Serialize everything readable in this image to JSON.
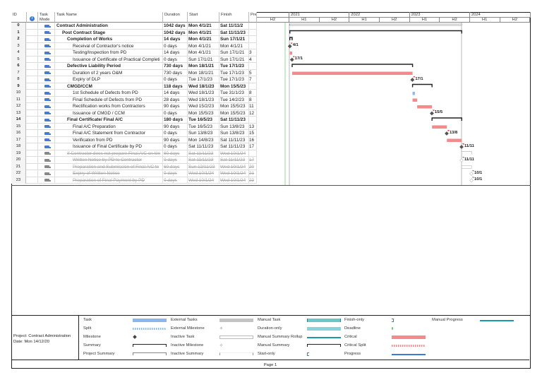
{
  "columns": {
    "id": "ID",
    "info": "i",
    "mode": "Task Mode",
    "name": "Task Name",
    "duration": "Duration",
    "start": "Start",
    "finish": "Finish",
    "pred": "Predecessors"
  },
  "timeline": {
    "years": [
      "2021",
      "2022",
      "2023",
      "2024"
    ],
    "halves": [
      "H2",
      "H1",
      "H2",
      "H1",
      "H2",
      "H1",
      "H2",
      "H1",
      "H2"
    ]
  },
  "colors": {
    "critical": "#f48a8c",
    "task": "#8ab8ec",
    "summary": "#222222",
    "milestone": "#555555",
    "inactive": "#bbbbbb",
    "status_line": "#7ccf7c"
  },
  "tasks": [
    {
      "id": "0",
      "name": "Contract Administration",
      "duration": "1042 days",
      "start": "Mon 4/1/21",
      "finish": "Sat 11/11/2",
      "pred": "",
      "level": 0,
      "kind": "project",
      "s": "2021-01-04",
      "f": "2023-11-11"
    },
    {
      "id": "1",
      "name": "Post Contract Stage",
      "duration": "1042 days",
      "start": "Mon 4/1/21",
      "finish": "Sat 11/11/23",
      "pred": "",
      "level": 1,
      "kind": "summary",
      "s": "2021-01-04",
      "f": "2023-11-11"
    },
    {
      "id": "2",
      "name": "Completion of Works",
      "duration": "14 days",
      "start": "Mon 4/1/21",
      "finish": "Sun 17/1/21",
      "pred": "",
      "level": 2,
      "kind": "summary",
      "s": "2021-01-04",
      "f": "2021-01-17"
    },
    {
      "id": "3",
      "name": "Receival of Contractor's notice",
      "duration": "0 days",
      "start": "Mon 4/1/21",
      "finish": "Mon 4/1/21",
      "pred": "",
      "level": 3,
      "kind": "milestone",
      "s": "2021-01-04",
      "f": "2021-01-04",
      "label": "4/1"
    },
    {
      "id": "4",
      "name": "Testing/Inspection from PD",
      "duration": "14 days",
      "start": "Mon 4/1/21",
      "finish": "Sun 17/1/21",
      "pred": "3",
      "level": 3,
      "kind": "critical",
      "s": "2021-01-04",
      "f": "2021-01-17"
    },
    {
      "id": "5",
      "name": "Issuance of Certificate of Practical Completi",
      "duration": "0 days",
      "start": "Sun 17/1/21",
      "finish": "Sun 17/1/21",
      "pred": "4",
      "level": 3,
      "kind": "milestone",
      "s": "2021-01-17",
      "f": "2021-01-17",
      "label": "17/1"
    },
    {
      "id": "6",
      "name": "Defective Liability Period",
      "duration": "730 days",
      "start": "Mon 18/1/21",
      "finish": "Tue 17/1/23",
      "pred": "",
      "level": 2,
      "kind": "summary",
      "s": "2021-01-18",
      "f": "2023-01-17"
    },
    {
      "id": "7",
      "name": "Duration of 2 years O&M",
      "duration": "730 days",
      "start": "Mon 18/1/21",
      "finish": "Tue 17/1/23",
      "pred": "5",
      "level": 3,
      "kind": "critical",
      "s": "2021-01-18",
      "f": "2023-01-17"
    },
    {
      "id": "8",
      "name": "Expiry of DLP",
      "duration": "0 days",
      "start": "Tue 17/1/23",
      "finish": "Tue 17/1/23",
      "pred": "7",
      "level": 3,
      "kind": "milestone",
      "s": "2023-01-17",
      "f": "2023-01-17",
      "label": "17/1"
    },
    {
      "id": "9",
      "name": "CMGD/CCM",
      "duration": "118 days",
      "start": "Wed 18/1/23",
      "finish": "Mon 15/5/23",
      "pred": "",
      "level": 2,
      "kind": "summary",
      "s": "2023-01-18",
      "f": "2023-05-15"
    },
    {
      "id": "10",
      "name": "1st Schedule of Defects from PD",
      "duration": "14 days",
      "start": "Wed 18/1/23",
      "finish": "Tue 31/1/23",
      "pred": "8",
      "level": 3,
      "kind": "task",
      "s": "2023-01-18",
      "f": "2023-01-31"
    },
    {
      "id": "11",
      "name": "Final Schedule of Defects from PD",
      "duration": "28 days",
      "start": "Wed 18/1/23",
      "finish": "Tue 14/2/23",
      "pred": "8",
      "level": 3,
      "kind": "critical",
      "s": "2023-01-18",
      "f": "2023-02-14"
    },
    {
      "id": "12",
      "name": "Rectification works from Contractors",
      "duration": "90 days",
      "start": "Wed 15/2/23",
      "finish": "Mon 15/5/23",
      "pred": "11",
      "level": 3,
      "kind": "critical",
      "s": "2023-02-15",
      "f": "2023-05-15"
    },
    {
      "id": "13",
      "name": "Issuance of CMGD / CCM",
      "duration": "0 days",
      "start": "Mon 15/5/23",
      "finish": "Mon 15/5/23",
      "pred": "12",
      "level": 3,
      "kind": "milestone",
      "s": "2023-05-15",
      "f": "2023-05-15",
      "label": "15/5"
    },
    {
      "id": "14",
      "name": "Final Certificate/ Final A/C",
      "duration": "180 days",
      "start": "Tue 16/5/23",
      "finish": "Sat 11/11/23",
      "pred": "",
      "level": 2,
      "kind": "summary",
      "s": "2023-05-16",
      "f": "2023-11-11"
    },
    {
      "id": "15",
      "name": "Final A/C Preparation",
      "duration": "90 days",
      "start": "Tue 16/5/23",
      "finish": "Sun 13/8/23",
      "pred": "13",
      "level": 3,
      "kind": "critical",
      "s": "2023-05-16",
      "f": "2023-08-13"
    },
    {
      "id": "16",
      "name": "Final A/C Statement from Contractor",
      "duration": "0 days",
      "start": "Sun 13/8/23",
      "finish": "Sun 13/8/23",
      "pred": "15",
      "level": 3,
      "kind": "milestone",
      "s": "2023-08-13",
      "f": "2023-08-13",
      "label": "13/8"
    },
    {
      "id": "17",
      "name": "Verification from PD",
      "duration": "90 days",
      "start": "Mon 14/8/23",
      "finish": "Sat 11/11/23",
      "pred": "16",
      "level": 3,
      "kind": "critical",
      "s": "2023-08-14",
      "f": "2023-11-11"
    },
    {
      "id": "18",
      "name": "Issuance of Final Certificate by PD",
      "duration": "0 days",
      "start": "Sat 11/11/23",
      "finish": "Sat 11/11/23",
      "pred": "17",
      "level": 3,
      "kind": "milestone",
      "s": "2023-11-11",
      "f": "2023-11-11",
      "label": "11/11"
    },
    {
      "id": "19",
      "name": "If Contractor does not prepare Final A/C on tim",
      "duration": "60 days",
      "start": "Sat 11/11/23",
      "finish": "Wed 10/1/24",
      "pred": "",
      "level": 2,
      "kind": "inactive-summary",
      "inactive": true,
      "s": "2023-11-11",
      "f": "2024-01-10"
    },
    {
      "id": "20",
      "name": "Written Notice by PD to Contractor",
      "duration": "0 days",
      "start": "Sat 11/11/23",
      "finish": "Sat 11/11/23",
      "pred": "17",
      "level": 3,
      "kind": "inactive-milestone",
      "inactive": true,
      "s": "2023-11-11",
      "f": "2023-11-11",
      "label": "11/11"
    },
    {
      "id": "21",
      "name": "Preparation and Submission of Final A/C to",
      "duration": "60 days",
      "start": "Sun 12/11/23",
      "finish": "Wed 10/1/24",
      "pred": "20",
      "level": 3,
      "kind": "inactive-task",
      "inactive": true,
      "s": "2023-11-12",
      "f": "2024-01-10"
    },
    {
      "id": "22",
      "name": "Expiry of Written Notice",
      "duration": "0 days",
      "start": "Wed 10/1/24",
      "finish": "Wed 10/1/24",
      "pred": "21",
      "level": 3,
      "kind": "inactive-milestone",
      "inactive": true,
      "s": "2024-01-10",
      "f": "2024-01-10",
      "label": "10/1"
    },
    {
      "id": "23",
      "name": "Preparation of Final Payment by PD",
      "duration": "0 days",
      "start": "Wed 10/1/24",
      "finish": "Wed 10/1/24",
      "pred": "22",
      "level": 3,
      "kind": "inactive-milestone",
      "inactive": true,
      "s": "2024-01-10",
      "f": "2024-01-10",
      "label": "10/1"
    }
  ],
  "legend": {
    "project": "Project: Contract Administration",
    "date": "Date: Mon 14/12/20",
    "items": [
      [
        "Task",
        "Split",
        "Milestone",
        "Summary",
        "Project Summary"
      ],
      [
        "External Tasks",
        "External Milestone",
        "Inactive Task",
        "Inactive Milestone",
        "Inactive Summary"
      ],
      [
        "Manual Task",
        "Duration-only",
        "Manual Summary Rollup",
        "Manual Summary",
        "Start-only"
      ],
      [
        "Finish-only",
        "Deadline",
        "Critical",
        "Critical Split",
        "Progress"
      ],
      [
        "Manual Progress"
      ]
    ]
  },
  "footer": {
    "page": "Page 1"
  }
}
